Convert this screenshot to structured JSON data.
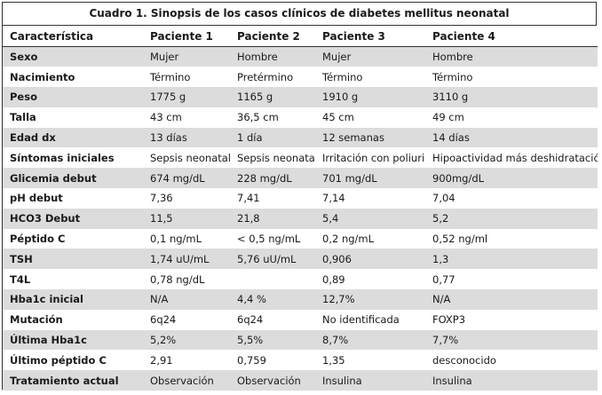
{
  "caption": "Cuadro 1. Sinopsis de los casos clínicos de diabetes mellitus neonatal",
  "headers": [
    "Característica",
    "Paciente 1",
    "Paciente 2",
    "Paciente 3",
    "Paciente 4"
  ],
  "rows": [
    [
      "Sexo",
      "Mujer",
      "Hombre",
      "Mujer",
      "Hombre"
    ],
    [
      "Nacimiento",
      "Término",
      "Pretérmino",
      "Término",
      "Término"
    ],
    [
      "Peso",
      "1775 g",
      "1165 g",
      "1910 g",
      "3110 g"
    ],
    [
      "Talla",
      "43 cm",
      "36,5 cm",
      "45 cm",
      "49 cm"
    ],
    [
      "Edad dx",
      "13 días",
      "1 día",
      "12 semanas",
      "14 días"
    ],
    [
      "Síntomas iniciales",
      "Sepsis neonatal",
      "Sepsis neonatal",
      "Irritación con poliuria",
      "Hipoactividad más deshidratación"
    ],
    [
      "Glicemia debut",
      "674 mg/dL",
      "228 mg/dL",
      "701 mg/dL",
      "900mg/dL"
    ],
    [
      "pH debut",
      "7,36",
      "7,41",
      "7,14",
      "7,04"
    ],
    [
      "HCO3 Debut",
      "11,5",
      "21,8",
      "5,4",
      "5,2"
    ],
    [
      "Péptido C",
      "0,1 ng/mL",
      "< 0,5 ng/mL",
      "0,2 ng/mL",
      "0,52 ng/ml"
    ],
    [
      "TSH",
      "1,74 uU/mL",
      "5,76 uU/mL",
      "0,906",
      "1,3"
    ],
    [
      "T4L",
      "0,78 ng/dL",
      "",
      "0,89",
      "0,77"
    ],
    [
      "Hba1c inicial",
      "N/A",
      "4,4 %",
      "12,7%",
      "N/A"
    ],
    [
      "Mutación",
      "6q24",
      "6q24",
      "No identificada",
      "FOXP3"
    ],
    [
      "Última Hba1c",
      "5,2%",
      "5,5%",
      "8,7%",
      "7,7%"
    ],
    [
      "Último péptido C",
      "2,91",
      "0,759",
      "1,35",
      "desconocido"
    ],
    [
      "Tratamiento actual",
      "Observación",
      "Observación",
      "Insulina",
      "Insulina"
    ]
  ]
}
